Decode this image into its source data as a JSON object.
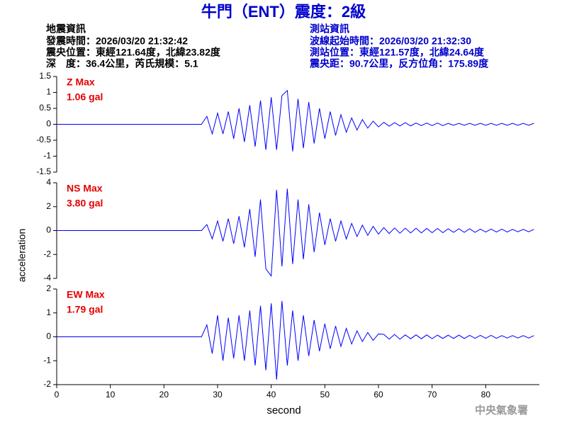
{
  "header": {
    "title": "牛門（ENT）震度：2級",
    "left": [
      "地震資訊",
      "發震時間：2026/03/20 21:32:42",
      "震央位置：東經121.64度，北緯23.82度",
      "深　度：36.4公里，芮氏規模：5.1"
    ],
    "right": [
      "測站資訊",
      "波線起始時間：2026/03/20 21:32:30",
      "測站位置：東經121.57度，北緯24.64度",
      "震央距：90.7公里，反方位角：175.89度"
    ]
  },
  "footer": "中央氣象署",
  "chart_data": [
    {
      "type": "line",
      "annotation": [
        "Z Max",
        "1.06 gal"
      ],
      "color": "#0000ff",
      "x": [
        0,
        27,
        28,
        29,
        30,
        31,
        32,
        33,
        34,
        35,
        36,
        37,
        38,
        39,
        40,
        41,
        42,
        43,
        44,
        45,
        46,
        47,
        48,
        49,
        50,
        51,
        52,
        53,
        54,
        55,
        56,
        57,
        58,
        59,
        60,
        61,
        62,
        63,
        64,
        65,
        66,
        67,
        68,
        69,
        70,
        71,
        72,
        73,
        74,
        75,
        76,
        77,
        78,
        79,
        80,
        81,
        82,
        83,
        84,
        85,
        86,
        87,
        88,
        89
      ],
      "values": [
        0,
        0,
        0.25,
        -0.3,
        0.35,
        -0.3,
        0.4,
        -0.45,
        0.5,
        -0.55,
        0.6,
        -0.7,
        0.75,
        -0.8,
        0.85,
        -0.8,
        0.9,
        1.06,
        -0.85,
        0.8,
        -0.75,
        0.7,
        -0.6,
        0.5,
        -0.45,
        0.4,
        -0.35,
        0.3,
        -0.25,
        0.2,
        -0.18,
        0.15,
        -0.12,
        0.1,
        -0.08,
        0.06,
        -0.06,
        0.05,
        -0.05,
        0.05,
        -0.05,
        0.04,
        -0.04,
        0.04,
        -0.04,
        0.04,
        -0.04,
        0.03,
        -0.03,
        0.03,
        -0.03,
        0.03,
        -0.03,
        0.03,
        -0.03,
        0.03,
        -0.03,
        0.03,
        -0.03,
        0.03,
        -0.03,
        0.03,
        -0.03,
        0.03
      ],
      "xlim": [
        0,
        90
      ],
      "ylim": [
        -1.5,
        1.5
      ],
      "yticks": [
        -1.5,
        -1,
        -0.5,
        0,
        0.5,
        1,
        1.5
      ]
    },
    {
      "type": "line",
      "annotation": [
        "NS Max",
        "3.80 gal"
      ],
      "color": "#0000ff",
      "ylabel": "acceleration",
      "x": [
        0,
        27,
        28,
        29,
        30,
        31,
        32,
        33,
        34,
        35,
        36,
        37,
        38,
        39,
        40,
        41,
        42,
        43,
        44,
        45,
        46,
        47,
        48,
        49,
        50,
        51,
        52,
        53,
        54,
        55,
        56,
        57,
        58,
        59,
        60,
        61,
        62,
        63,
        64,
        65,
        66,
        67,
        68,
        69,
        70,
        71,
        72,
        73,
        74,
        75,
        76,
        77,
        78,
        79,
        80,
        81,
        82,
        83,
        84,
        85,
        86,
        87,
        88,
        89
      ],
      "values": [
        0,
        0,
        0.5,
        -0.7,
        0.8,
        -0.9,
        1,
        -1.1,
        1.2,
        -1.4,
        1.8,
        -2.2,
        2.6,
        -3.2,
        -3.8,
        3.4,
        -3,
        3.5,
        -2.8,
        2.6,
        -2.4,
        2.2,
        -1.8,
        1.5,
        -1.2,
        1,
        -0.9,
        0.8,
        -0.7,
        0.6,
        -0.5,
        0.45,
        -0.4,
        0.35,
        -0.3,
        0.25,
        -0.25,
        0.22,
        -0.22,
        0.2,
        -0.2,
        0.2,
        -0.2,
        0.18,
        -0.18,
        0.18,
        -0.18,
        0.15,
        -0.15,
        0.15,
        -0.15,
        0.15,
        -0.15,
        0.12,
        -0.12,
        0.12,
        -0.12,
        0.12,
        -0.12,
        0.1,
        -0.1,
        0.1,
        -0.1,
        0.1
      ],
      "xlim": [
        0,
        90
      ],
      "ylim": [
        -4,
        4
      ],
      "yticks": [
        -4,
        -2,
        0,
        2,
        4
      ]
    },
    {
      "type": "line",
      "annotation": [
        "EW Max",
        "1.79 gal"
      ],
      "color": "#0000ff",
      "xlabel": "second",
      "x": [
        0,
        27,
        28,
        29,
        30,
        31,
        32,
        33,
        34,
        35,
        36,
        37,
        38,
        39,
        40,
        41,
        42,
        43,
        44,
        45,
        46,
        47,
        48,
        49,
        50,
        51,
        52,
        53,
        54,
        55,
        56,
        57,
        58,
        59,
        60,
        61,
        62,
        63,
        64,
        65,
        66,
        67,
        68,
        69,
        70,
        71,
        72,
        73,
        74,
        75,
        76,
        77,
        78,
        79,
        80,
        81,
        82,
        83,
        84,
        85,
        86,
        87,
        88,
        89
      ],
      "values": [
        0,
        0,
        0.5,
        -0.7,
        0.9,
        -1,
        0.8,
        -0.9,
        0.9,
        -1,
        1.1,
        -1.2,
        1.3,
        -1.4,
        1.4,
        -1.79,
        1.5,
        -1.2,
        1.1,
        -1,
        0.9,
        -0.8,
        0.7,
        -0.6,
        0.55,
        -0.5,
        0.45,
        -0.4,
        0.35,
        -0.3,
        0.25,
        -0.2,
        0.18,
        -0.15,
        0.12,
        0.1,
        -0.1,
        0.1,
        -0.1,
        0.08,
        -0.08,
        0.08,
        -0.08,
        0.08,
        -0.08,
        0.07,
        -0.07,
        0.07,
        -0.07,
        0.07,
        -0.07,
        0.06,
        -0.06,
        0.06,
        -0.06,
        0.06,
        -0.06,
        0.05,
        -0.05,
        0.05,
        -0.05,
        0.05,
        -0.05,
        0.05
      ],
      "xlim": [
        0,
        90
      ],
      "ylim": [
        -2,
        2
      ],
      "yticks": [
        -2,
        -1,
        0,
        1,
        2
      ],
      "xticks": [
        0,
        10,
        20,
        30,
        40,
        50,
        60,
        70,
        80
      ]
    }
  ]
}
